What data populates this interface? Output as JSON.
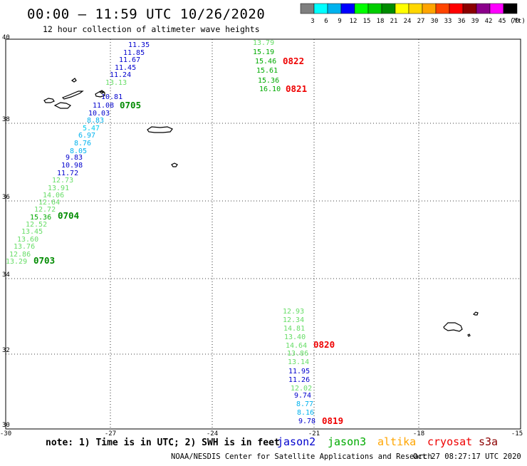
{
  "header": {
    "title": "00:00 – 11:59 UTC 10/26/2020",
    "subtitle": "12 hour collection of altimeter wave heights"
  },
  "colorbar": {
    "labels": [
      "3",
      "6",
      "9",
      "12",
      "15",
      "18",
      "21",
      "24",
      "27",
      "30",
      "33",
      "36",
      "39",
      "42",
      "45",
      "70"
    ],
    "unit": "(ft)",
    "colors": [
      "#7f7f7f",
      "#00ffff",
      "#00b2ee",
      "#0000ff",
      "#00ff00",
      "#00cd00",
      "#008b00",
      "#ffff00",
      "#ffd700",
      "#ffa500",
      "#ff4500",
      "#ff0000",
      "#8b0000",
      "#8b008b",
      "#ff00ff",
      "#000000"
    ]
  },
  "axes": {
    "lat_labels": [
      "40",
      "38",
      "36",
      "34",
      "32",
      "30"
    ],
    "lon_labels": [
      "-30",
      "-27",
      "-24",
      "-21",
      "-18",
      "-15"
    ]
  },
  "tracks": [
    {
      "name": "track-0705",
      "time": "0705",
      "time_color": "#008b00",
      "points": [
        {
          "v": "11.35",
          "c": "#0000cd"
        },
        {
          "v": "11.85",
          "c": "#0000cd"
        },
        {
          "v": "11.67",
          "c": "#0000cd"
        },
        {
          "v": "11.45",
          "c": "#0000cd"
        },
        {
          "v": "11.24",
          "c": "#0000cd"
        },
        {
          "v": "13.13",
          "c": "#66dd66"
        },
        {
          "v": "10.81",
          "c": "#0000cd"
        },
        {
          "v": "11.08",
          "c": "#0000cd"
        },
        {
          "v": "10.03",
          "c": "#0000cd"
        }
      ]
    },
    {
      "name": "track-0704",
      "time": "0704",
      "time_color": "#008b00",
      "points": [
        {
          "v": "8.83",
          "c": "#00b2ee"
        },
        {
          "v": "5.47",
          "c": "#00ccee"
        },
        {
          "v": "6.97",
          "c": "#00b2ee"
        },
        {
          "v": "8.76",
          "c": "#00b2ee"
        },
        {
          "v": "8.05",
          "c": "#00b2ee"
        },
        {
          "v": "9.83",
          "c": "#0000cd"
        },
        {
          "v": "10.98",
          "c": "#0000cd"
        },
        {
          "v": "11.72",
          "c": "#0000cd"
        },
        {
          "v": "12.73",
          "c": "#66dd66"
        },
        {
          "v": "13.91",
          "c": "#66dd66"
        },
        {
          "v": "14.06",
          "c": "#66dd66"
        },
        {
          "v": "12.64",
          "c": "#66dd66"
        },
        {
          "v": "12.72",
          "c": "#66dd66"
        },
        {
          "v": "15.36",
          "c": "#00aa00"
        }
      ]
    },
    {
      "name": "track-0703",
      "time": "0703",
      "time_color": "#008b00",
      "points": [
        {
          "v": "12.52",
          "c": "#66dd66"
        },
        {
          "v": "13.45",
          "c": "#66dd66"
        },
        {
          "v": "13.60",
          "c": "#66dd66"
        },
        {
          "v": "13.76",
          "c": "#66dd66"
        },
        {
          "v": "12.86",
          "c": "#66dd66"
        },
        {
          "v": "13.29",
          "c": "#66dd66"
        }
      ]
    },
    {
      "name": "track-0822",
      "time": "0822",
      "time_color": "#ee0000",
      "points": [
        {
          "v": "13.79",
          "c": "#66dd66"
        },
        {
          "v": "15.19",
          "c": "#00aa00"
        },
        {
          "v": "15.46",
          "c": "#00aa00"
        }
      ]
    },
    {
      "name": "track-0821",
      "time": "0821",
      "time_color": "#ee0000",
      "points": [
        {
          "v": "15.61",
          "c": "#00aa00"
        },
        {
          "v": "15.36",
          "c": "#00aa00"
        },
        {
          "v": "16.10",
          "c": "#00aa00"
        }
      ]
    },
    {
      "name": "track-0820",
      "time": "0820",
      "time_color": "#ee0000",
      "points": [
        {
          "v": "12.93",
          "c": "#66dd66"
        },
        {
          "v": "12.34",
          "c": "#66dd66"
        },
        {
          "v": "14.81",
          "c": "#66dd66"
        },
        {
          "v": "13.40",
          "c": "#66dd66"
        },
        {
          "v": "14.64",
          "c": "#66dd66"
        },
        {
          "v": "13.86",
          "c": "#66dd66"
        },
        {
          "v": "13.14",
          "c": "#66dd66"
        }
      ]
    },
    {
      "name": "track-0819",
      "time": "0819",
      "time_color": "#ee0000",
      "points": [
        {
          "v": "11.95",
          "c": "#0000cd"
        },
        {
          "v": "11.26",
          "c": "#0000cd"
        },
        {
          "v": "12.02",
          "c": "#66dd66"
        },
        {
          "v": "9.74",
          "c": "#0000cd"
        },
        {
          "v": "8.77",
          "c": "#00b2ee"
        },
        {
          "v": "8.16",
          "c": "#00b2ee"
        },
        {
          "v": "9.78",
          "c": "#0000cd"
        }
      ]
    }
  ],
  "note": "note: 1) Time is in UTC; 2) SWH is in feet",
  "legend": [
    {
      "name": "jason2",
      "color": "#0000cd"
    },
    {
      "name": "jason3",
      "color": "#00aa00"
    },
    {
      "name": "altika",
      "color": "#ffa500"
    },
    {
      "name": "cryosat",
      "color": "#ee0000"
    },
    {
      "name": "s3a",
      "color": "#8b0000"
    }
  ],
  "footer": {
    "credit": "NOAA/NESDIS Center for Satellite Applications and Research",
    "timestamp": "Oct 27 08:27:17 UTC 2020"
  }
}
